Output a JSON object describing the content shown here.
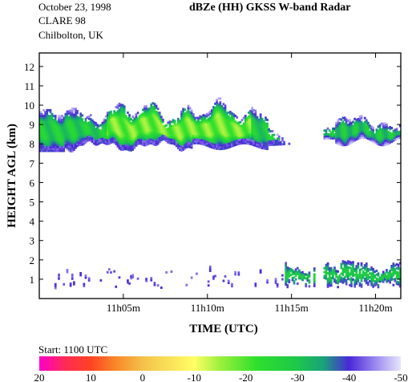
{
  "header": {
    "date": "October 23, 1998",
    "campaign": "CLARE 98",
    "location": "Chilbolton, UK",
    "title": "dBZe (HH)   GKSS  W-band Radar",
    "start": "Start: 1100 UTC"
  },
  "chart_data": {
    "type": "heatmap",
    "xlabel": "TIME (UTC)",
    "ylabel": "HEIGHT AGL (km)",
    "xlim_minutes_after_1100": [
      0,
      21.5
    ],
    "ylim_km": [
      0,
      12.7
    ],
    "x_ticks": [
      {
        "label": "11h05m",
        "minute": 5
      },
      {
        "label": "11h10m",
        "minute": 10
      },
      {
        "label": "11h15m",
        "minute": 15
      },
      {
        "label": "11h20m",
        "minute": 20
      }
    ],
    "y_ticks": [
      "1",
      "2",
      "3",
      "4",
      "5",
      "6",
      "7",
      "8",
      "9",
      "10",
      "11",
      "12"
    ],
    "colorbar": {
      "label": "dBZe",
      "ticks": [
        "20",
        "10",
        "0",
        "-10",
        "-20",
        "-30",
        "-40",
        "-50"
      ],
      "stops": [
        {
          "dbz": 20,
          "color": "#ff00cc"
        },
        {
          "dbz": 15,
          "color": "#ff2a55"
        },
        {
          "dbz": 10,
          "color": "#ff4422"
        },
        {
          "dbz": 5,
          "color": "#f88a2a"
        },
        {
          "dbz": 0,
          "color": "#f4c14a"
        },
        {
          "dbz": -10,
          "color": "#ffff66"
        },
        {
          "dbz": -15,
          "color": "#9cf03c"
        },
        {
          "dbz": -22,
          "color": "#2fe02c"
        },
        {
          "dbz": -30,
          "color": "#1dc74a"
        },
        {
          "dbz": -35,
          "color": "#1aa27a"
        },
        {
          "dbz": -40,
          "color": "#4a28d8"
        },
        {
          "dbz": -45,
          "color": "#9a88ef"
        },
        {
          "dbz": -50,
          "color": "#e6e6fb"
        }
      ]
    },
    "echo_regions": [
      {
        "name": "main cloud",
        "t_start": 0.0,
        "t_end": 15.2,
        "base_km": 7.6,
        "top_km": 10.1,
        "peak_dbz": -18
      },
      {
        "name": "right cloud",
        "t_start": 16.9,
        "t_end": 21.5,
        "base_km": 7.9,
        "top_km": 9.5,
        "peak_dbz": -32
      },
      {
        "name": "low-level echo",
        "t_start": 0.8,
        "t_end": 21.5,
        "base_km": 0.5,
        "top_km": 1.9,
        "peak_dbz": -32
      }
    ]
  },
  "colors": {
    "background": "#ffffff",
    "axis": "#000000"
  }
}
